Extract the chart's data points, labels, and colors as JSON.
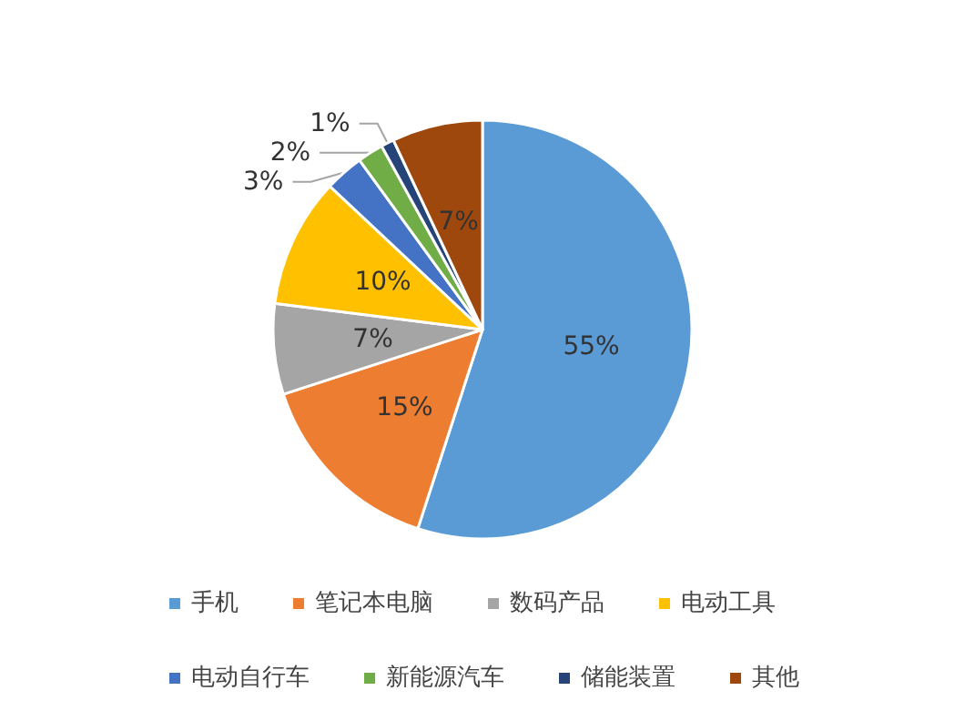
{
  "chart_data": {
    "type": "pie",
    "categories": [
      "手机",
      "笔记本电脑",
      "数码产品",
      "电动工具",
      "电动自行车",
      "新能源汽车",
      "储能装置",
      "其他"
    ],
    "values": [
      55,
      15,
      7,
      10,
      3,
      2,
      1,
      7
    ],
    "value_labels": [
      "55%",
      "15%",
      "7%",
      "10%",
      "3%",
      "2%",
      "1%",
      "7%"
    ],
    "colors": [
      "#5b9bd5",
      "#ed7d31",
      "#a5a5a5",
      "#ffc000",
      "#4472c4",
      "#70ad47",
      "#264478",
      "#9e480e"
    ],
    "legend": "bottom"
  }
}
